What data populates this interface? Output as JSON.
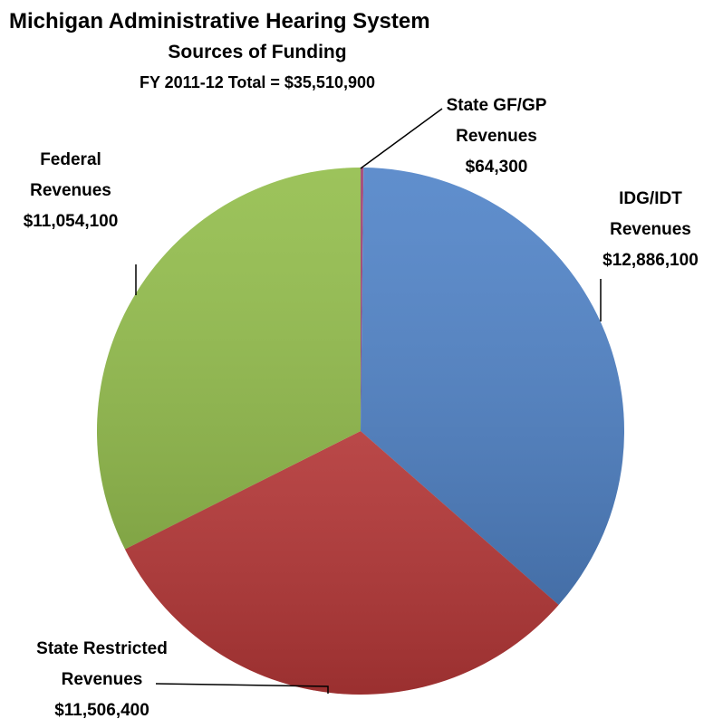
{
  "chart_data": {
    "type": "pie",
    "title": "Michigan Administrative Hearing System",
    "subtitle": "Sources of Funding",
    "total_label": "FY 2011-12 Total = $35,510,900",
    "categories": [
      "State GF/GP Revenues",
      "IDG/IDT Revenues",
      "Federal Revenues",
      "State Restricted Revenues"
    ],
    "values": [
      64300,
      12886100,
      11054100,
      11506400
    ],
    "value_labels": [
      "$64,300",
      "$12,886,100",
      "$11,054,100",
      "$11,506,400"
    ],
    "colors": [
      "#9b3b6e",
      "#4a7fc6",
      "#c63d3d",
      "#8fbb45"
    ]
  }
}
